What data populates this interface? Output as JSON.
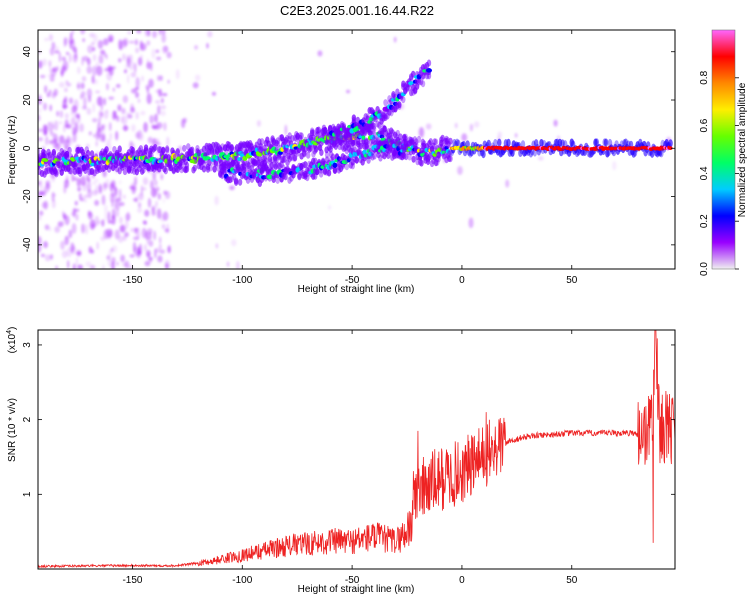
{
  "figure_title": "C2E3.2025.001.16.44.R22",
  "colorbar": {
    "label": "Normalized spectral amplitude",
    "ticks": [
      "0.0",
      "0.2",
      "0.4",
      "0.6",
      "0.8"
    ],
    "colors": [
      "#f0f0f0",
      "#9900ff",
      "#0000ff",
      "#00ccff",
      "#00ff66",
      "#66ff00",
      "#ffee00",
      "#ff8800",
      "#ff0000",
      "#ff66ff"
    ]
  },
  "chart_data": [
    {
      "type": "heatmap",
      "title": "",
      "xlabel": "Height of straight line (km)",
      "ylabel": "Frequency (Hz)",
      "xlim": [
        -193,
        97
      ],
      "ylim": [
        -50,
        49
      ],
      "xticks": [
        -150,
        -100,
        -50,
        0,
        50
      ],
      "yticks": [
        -40,
        -20,
        0,
        20,
        40
      ],
      "colorscale_range": [
        0,
        1
      ],
      "ridges": [
        {
          "name": "main",
          "points": [
            [
              -193,
              -6
            ],
            [
              -150,
              -5
            ],
            [
              -120,
              -4
            ],
            [
              -100,
              -3
            ],
            [
              -80,
              0
            ],
            [
              -60,
              4
            ],
            [
              -45,
              6
            ],
            [
              -35,
              4
            ],
            [
              -25,
              0
            ],
            [
              -15,
              -2
            ],
            [
              -5,
              0
            ],
            [
              0,
              0
            ],
            [
              10,
              0
            ],
            [
              50,
              0
            ],
            [
              95,
              0
            ]
          ]
        },
        {
          "name": "lower-branch",
          "points": [
            [
              -110,
              -10
            ],
            [
              -90,
              -11
            ],
            [
              -70,
              -9
            ],
            [
              -55,
              -5
            ],
            [
              -45,
              -2
            ],
            [
              -35,
              0
            ],
            [
              -25,
              -1
            ]
          ]
        },
        {
          "name": "upper-branch",
          "points": [
            [
              -60,
              5
            ],
            [
              -45,
              10
            ],
            [
              -38,
              14
            ],
            [
              -30,
              20
            ],
            [
              -22,
              27
            ],
            [
              -15,
              33
            ]
          ]
        }
      ]
    },
    {
      "type": "line",
      "title": "",
      "xlabel": "Height of straight line (km)",
      "ylabel": "SNR (10 * v/v)",
      "scale_note": "(x10",
      "scale_exp": "4",
      "xlim": [
        -193,
        97
      ],
      "ylim": [
        0,
        3.2
      ],
      "xticks": [
        -150,
        -100,
        -50,
        0,
        50
      ],
      "yticks": [
        1,
        2,
        3
      ],
      "line_color": "#ee2222",
      "envelope": {
        "x": [
          -193,
          -160,
          -130,
          -115,
          -100,
          -80,
          -60,
          -50,
          -40,
          -30,
          -25,
          -22,
          -20,
          -10,
          0,
          10,
          20,
          30,
          40,
          50,
          60,
          70,
          80,
          85,
          87,
          88,
          90,
          97
        ],
        "y": [
          0.02,
          0.03,
          0.03,
          0.08,
          0.15,
          0.25,
          0.3,
          0.3,
          0.35,
          0.3,
          0.4,
          0.9,
          1.05,
          1.2,
          1.3,
          1.5,
          1.7,
          1.78,
          1.8,
          1.82,
          1.82,
          1.82,
          1.82,
          1.85,
          2.2,
          3.2,
          1.9,
          1.9
        ]
      },
      "spikes": [
        {
          "x": -20,
          "y": 1.85
        },
        {
          "x": 11,
          "y": 2.1
        },
        {
          "x": 88,
          "y": 3.2
        },
        {
          "x": 87,
          "y": 0.35
        }
      ]
    }
  ]
}
